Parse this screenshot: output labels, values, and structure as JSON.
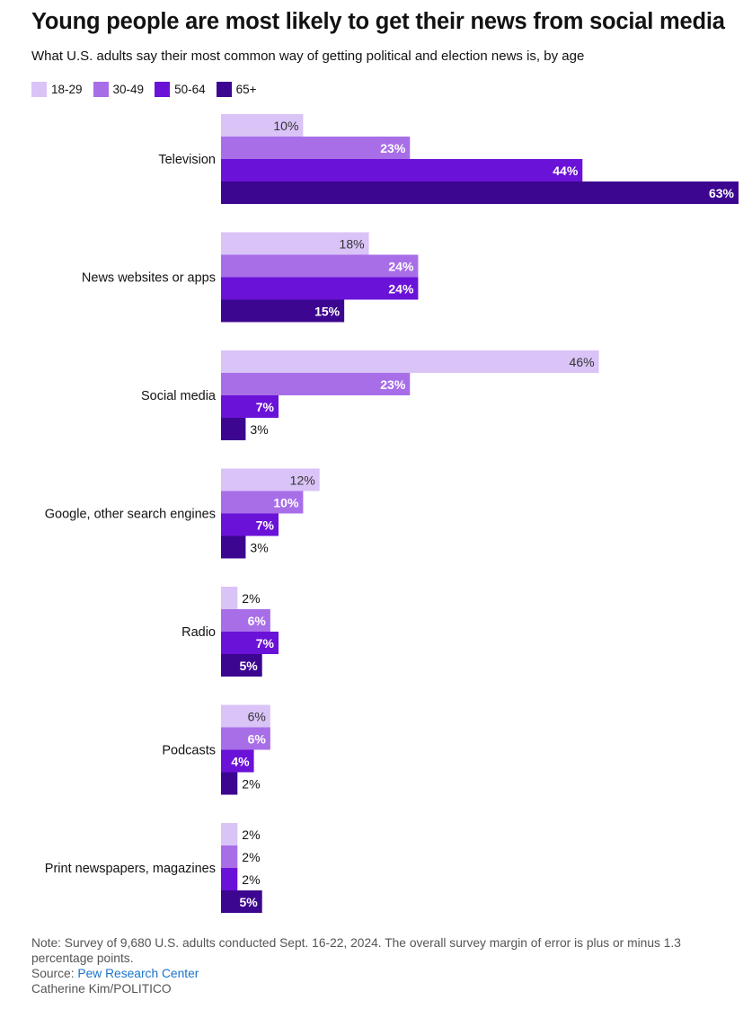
{
  "header": {
    "title": "Young people are most likely to get their news from social media",
    "subtitle": "What U.S. adults say their most common way of getting political and election news is, by age"
  },
  "chart_data": {
    "type": "bar",
    "orientation": "horizontal",
    "categories": [
      "Television",
      "News websites or apps",
      "Social media",
      "Google, other search engines",
      "Radio",
      "Podcasts",
      "Print newspapers, magazines"
    ],
    "series": [
      {
        "name": "18-29",
        "color": "#d9c3f7",
        "values": [
          10,
          18,
          46,
          12,
          2,
          6,
          2
        ]
      },
      {
        "name": "30-49",
        "color": "#a86ee8",
        "values": [
          23,
          24,
          23,
          10,
          6,
          6,
          2
        ]
      },
      {
        "name": "50-64",
        "color": "#6b12d8",
        "values": [
          44,
          24,
          7,
          7,
          7,
          4,
          2
        ]
      },
      {
        "name": "65+",
        "color": "#3c0690",
        "values": [
          63,
          15,
          3,
          3,
          5,
          2,
          5
        ]
      }
    ],
    "value_suffix": "%",
    "xlim": [
      0,
      63
    ],
    "grid": false,
    "legend_position": "top-left"
  },
  "footer": {
    "note": "Note: Survey of 9,680 U.S. adults conducted Sept. 16-22, 2024. The overall survey margin of error is plus or minus 1.3 percentage points.",
    "source_prefix": "Source: ",
    "source_name": "Pew Research Center",
    "credit": "Catherine Kim/POLITICO"
  }
}
